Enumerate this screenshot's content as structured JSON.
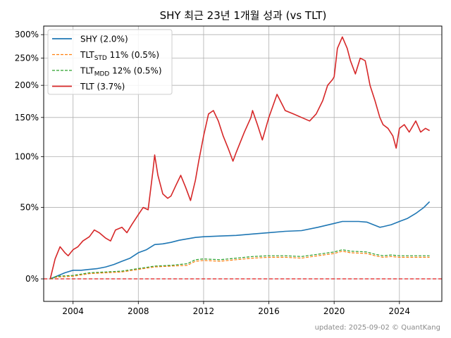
{
  "footer": "updated: 2025-09-02 © QuantKang",
  "chart_data": {
    "type": "line",
    "title": "SHY 최근 23년 1개월 성과 (vs TLT)",
    "xlabel": "",
    "ylabel": "",
    "y_scale": "log1p",
    "xlim": [
      2002.2,
      2026.6
    ],
    "ylim": [
      -0.12,
      3.2
    ],
    "x_ticks": [
      2004,
      2008,
      2012,
      2016,
      2020,
      2024
    ],
    "x_tick_labels": [
      "2004",
      "2008",
      "2012",
      "2016",
      "2020",
      "2024"
    ],
    "y_ticks": [
      0,
      0.5,
      1.0,
      1.5,
      2.0,
      2.5,
      3.0
    ],
    "y_tick_labels": [
      "0%",
      "50%",
      "100%",
      "150%",
      "200%",
      "250%",
      "300%"
    ],
    "grid": true,
    "legend_position": "upper-left",
    "baseline": {
      "value": 0,
      "color": "#e41a1c",
      "style": "dashed"
    },
    "series": [
      {
        "name": "SHY (2.0%)",
        "legend_main": "SHY (2.0%)",
        "legend_sub": "",
        "legend_tail": "",
        "color": "#1f77b4",
        "style": "solid",
        "x": [
          2002.6,
          2003.0,
          2003.5,
          2004.0,
          2004.5,
          2005.0,
          2005.5,
          2006.0,
          2006.5,
          2007.0,
          2007.5,
          2008.0,
          2008.5,
          2009.0,
          2009.5,
          2010.0,
          2010.5,
          2011.0,
          2011.5,
          2012.0,
          2013.0,
          2014.0,
          2015.0,
          2016.0,
          2017.0,
          2018.0,
          2019.0,
          2020.0,
          2020.5,
          2021.0,
          2021.5,
          2022.0,
          2022.5,
          2022.8,
          2023.0,
          2023.5,
          2024.0,
          2024.5,
          2025.0,
          2025.5,
          2025.85
        ],
        "y": [
          0.0,
          0.015,
          0.035,
          0.05,
          0.05,
          0.055,
          0.06,
          0.07,
          0.085,
          0.105,
          0.125,
          0.16,
          0.18,
          0.215,
          0.22,
          0.23,
          0.245,
          0.255,
          0.265,
          0.27,
          0.275,
          0.28,
          0.29,
          0.3,
          0.31,
          0.315,
          0.34,
          0.37,
          0.385,
          0.385,
          0.385,
          0.38,
          0.355,
          0.34,
          0.345,
          0.36,
          0.385,
          0.41,
          0.45,
          0.5,
          0.55
        ]
      },
      {
        "name": "TLT_STD 11% (0.5%)",
        "legend_main": "TLT",
        "legend_sub": "STD",
        "legend_tail": " 11% (0.5%)",
        "color": "#ff7f0e",
        "style": "dashed",
        "x": [
          2002.6,
          2003.0,
          2004.0,
          2005.0,
          2006.0,
          2007.0,
          2008.0,
          2009.0,
          2010.0,
          2011.0,
          2011.5,
          2012.0,
          2013.0,
          2014.0,
          2015.0,
          2016.0,
          2017.0,
          2018.0,
          2019.0,
          2020.0,
          2020.5,
          2021.0,
          2022.0,
          2022.5,
          2023.0,
          2023.5,
          2024.0,
          2024.5,
          2025.0,
          2025.5,
          2025.85
        ],
        "y": [
          0.0,
          0.01,
          0.015,
          0.03,
          0.035,
          0.04,
          0.055,
          0.07,
          0.075,
          0.08,
          0.105,
          0.11,
          0.105,
          0.115,
          0.125,
          0.13,
          0.13,
          0.125,
          0.14,
          0.155,
          0.17,
          0.16,
          0.155,
          0.14,
          0.13,
          0.135,
          0.13,
          0.13,
          0.13,
          0.13,
          0.13
        ]
      },
      {
        "name": "TLT_MDD 12% (0.5%)",
        "legend_main": "TLT",
        "legend_sub": "MDD",
        "legend_tail": " 12% (0.5%)",
        "color": "#2ca02c",
        "style": "dashed",
        "x": [
          2002.6,
          2003.0,
          2004.0,
          2005.0,
          2006.0,
          2007.0,
          2008.0,
          2009.0,
          2010.0,
          2011.0,
          2011.5,
          2012.0,
          2013.0,
          2014.0,
          2015.0,
          2016.0,
          2017.0,
          2018.0,
          2019.0,
          2020.0,
          2020.5,
          2021.0,
          2022.0,
          2022.5,
          2023.0,
          2023.5,
          2024.0,
          2024.5,
          2025.0,
          2025.5,
          2025.85
        ],
        "y": [
          0.0,
          0.015,
          0.02,
          0.035,
          0.04,
          0.045,
          0.06,
          0.075,
          0.08,
          0.09,
          0.115,
          0.12,
          0.115,
          0.125,
          0.135,
          0.14,
          0.14,
          0.135,
          0.15,
          0.165,
          0.18,
          0.17,
          0.165,
          0.15,
          0.14,
          0.145,
          0.14,
          0.14,
          0.14,
          0.14,
          0.14
        ]
      },
      {
        "name": "TLT (3.7%)",
        "legend_main": "TLT (3.7%)",
        "legend_sub": "",
        "legend_tail": "",
        "color": "#d62728",
        "style": "solid",
        "x": [
          2002.6,
          2002.9,
          2003.2,
          2003.5,
          2003.7,
          2004.0,
          2004.3,
          2004.6,
          2005.0,
          2005.3,
          2005.6,
          2006.0,
          2006.3,
          2006.6,
          2007.0,
          2007.3,
          2007.6,
          2008.0,
          2008.3,
          2008.6,
          2008.9,
          2009.0,
          2009.2,
          2009.5,
          2009.8,
          2010.0,
          2010.3,
          2010.6,
          2010.9,
          2011.2,
          2011.5,
          2011.7,
          2012.0,
          2012.3,
          2012.6,
          2012.9,
          2013.2,
          2013.5,
          2013.8,
          2014.0,
          2014.5,
          2014.9,
          2015.0,
          2015.3,
          2015.6,
          2016.0,
          2016.5,
          2016.9,
          2017.0,
          2017.5,
          2018.0,
          2018.5,
          2018.9,
          2019.3,
          2019.6,
          2019.9,
          2020.0,
          2020.2,
          2020.5,
          2020.8,
          2021.0,
          2021.3,
          2021.6,
          2021.9,
          2022.0,
          2022.2,
          2022.5,
          2022.8,
          2023.0,
          2023.3,
          2023.6,
          2023.8,
          2024.0,
          2024.3,
          2024.6,
          2025.0,
          2025.3,
          2025.6,
          2025.85
        ],
        "y": [
          0.0,
          0.12,
          0.2,
          0.16,
          0.14,
          0.18,
          0.2,
          0.24,
          0.27,
          0.32,
          0.3,
          0.26,
          0.24,
          0.32,
          0.34,
          0.3,
          0.36,
          0.44,
          0.5,
          0.48,
          0.85,
          1.02,
          0.8,
          0.62,
          0.58,
          0.6,
          0.7,
          0.8,
          0.68,
          0.56,
          0.75,
          0.95,
          1.25,
          1.55,
          1.6,
          1.45,
          1.25,
          1.1,
          0.95,
          1.05,
          1.3,
          1.5,
          1.6,
          1.4,
          1.2,
          1.5,
          1.85,
          1.65,
          1.6,
          1.55,
          1.5,
          1.45,
          1.55,
          1.75,
          2.0,
          2.1,
          2.15,
          2.7,
          2.95,
          2.7,
          2.45,
          2.2,
          2.5,
          2.45,
          2.3,
          2.0,
          1.75,
          1.5,
          1.4,
          1.35,
          1.25,
          1.1,
          1.35,
          1.4,
          1.3,
          1.45,
          1.3,
          1.35,
          1.32
        ]
      }
    ]
  }
}
